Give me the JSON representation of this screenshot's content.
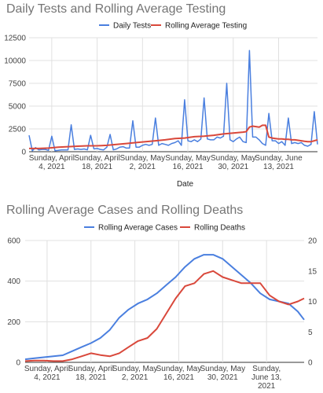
{
  "chart_data": [
    {
      "type": "line",
      "title": "Daily Tests and Rolling Average Testing",
      "xlabel": "Date",
      "ylabel": "",
      "ylim": [
        0,
        12500
      ],
      "y_ticks": [
        "0",
        "2500",
        "5000",
        "7500",
        "10000",
        "12500"
      ],
      "x_ticks": [
        {
          "lines": [
            "Sunday, April",
            "4, 2021"
          ]
        },
        {
          "lines": [
            "Sunday, April",
            "18, 2021"
          ]
        },
        {
          "lines": [
            "Sunday, May",
            "2, 2021"
          ]
        },
        {
          "lines": [
            "Sunday, May",
            "16, 2021"
          ]
        },
        {
          "lines": [
            "Sunday, May",
            "30, 2021"
          ]
        },
        {
          "lines": [
            "Sunday, June",
            "13, 2021"
          ]
        }
      ],
      "x_tick_days": [
        4,
        18,
        32,
        46,
        60,
        74
      ],
      "x_range_days": [
        -3,
        86
      ],
      "legend_position": "top",
      "grid": true,
      "series": [
        {
          "name": "Daily Tests",
          "color": "#4a7fdf",
          "days": [
            -3,
            -2,
            -1,
            0,
            1,
            2,
            3,
            4,
            5,
            6,
            7,
            8,
            9,
            10,
            11,
            12,
            13,
            14,
            15,
            16,
            17,
            18,
            19,
            20,
            21,
            22,
            23,
            24,
            25,
            26,
            27,
            28,
            29,
            30,
            31,
            32,
            33,
            34,
            35,
            36,
            37,
            38,
            39,
            40,
            41,
            42,
            43,
            44,
            45,
            46,
            47,
            48,
            49,
            50,
            51,
            52,
            53,
            54,
            55,
            56,
            57,
            58,
            59,
            60,
            61,
            62,
            63,
            64,
            65,
            66,
            67,
            68,
            69,
            70,
            71,
            72,
            73,
            74,
            75,
            76,
            77,
            78,
            79,
            80,
            81,
            82,
            83,
            84,
            85,
            86
          ],
          "values": [
            1800,
            100,
            450,
            200,
            250,
            250,
            150,
            1700,
            100,
            150,
            200,
            200,
            200,
            2950,
            250,
            300,
            250,
            300,
            200,
            1800,
            300,
            350,
            250,
            200,
            500,
            1900,
            200,
            300,
            500,
            550,
            400,
            400,
            3400,
            500,
            500,
            700,
            800,
            700,
            800,
            3700,
            700,
            900,
            800,
            700,
            900,
            1000,
            1200,
            700,
            5700,
            1200,
            1100,
            1300,
            1100,
            1400,
            5900,
            1400,
            1300,
            1300,
            1600,
            1500,
            1700,
            7500,
            1300,
            1100,
            1400,
            1600,
            1100,
            1000,
            11100,
            1600,
            1600,
            1300,
            900,
            700,
            4200,
            1200,
            1200,
            900,
            1100,
            700,
            3700,
            900,
            1000,
            900,
            1000,
            700,
            600,
            800,
            4400,
            800
          ]
        },
        {
          "name": "Rolling Average Testing",
          "color": "#d9483b",
          "days": [
            -3,
            0,
            3,
            6,
            9,
            12,
            15,
            18,
            21,
            24,
            27,
            30,
            33,
            36,
            39,
            42,
            45,
            48,
            51,
            54,
            57,
            60,
            63,
            64,
            65,
            66,
            67,
            68,
            69,
            70,
            71,
            72,
            73,
            74,
            75,
            76,
            77,
            78,
            79,
            80,
            81,
            82,
            83,
            84,
            85,
            86
          ],
          "values": [
            350,
            350,
            400,
            500,
            550,
            600,
            650,
            650,
            700,
            800,
            900,
            1000,
            1100,
            1200,
            1300,
            1450,
            1500,
            1650,
            1700,
            1800,
            1950,
            2050,
            2150,
            2200,
            2700,
            2800,
            2750,
            2700,
            2900,
            2900,
            1600,
            1500,
            1450,
            1400,
            1400,
            1350,
            1350,
            1300,
            1300,
            1250,
            1200,
            1150,
            1100,
            1100,
            1200,
            1300
          ]
        }
      ]
    },
    {
      "type": "line",
      "title": "Rolling Average Cases and Rolling Deaths",
      "xlabel": "",
      "ylabel": "",
      "ylim": [
        0,
        600
      ],
      "y2lim": [
        0,
        20
      ],
      "y_ticks": [
        "0",
        "200",
        "400",
        "600"
      ],
      "y2_ticks": [
        "0",
        "5",
        "10",
        "15",
        "20"
      ],
      "x_ticks": [
        {
          "lines": [
            "Sunday, April",
            "4, 2021"
          ]
        },
        {
          "lines": [
            "Sunday, April",
            "18, 2021"
          ]
        },
        {
          "lines": [
            "Sunday, May",
            "2, 2021"
          ]
        },
        {
          "lines": [
            "Sunday, May",
            "16, 2021"
          ]
        },
        {
          "lines": [
            "Sunday, May",
            "30, 2021"
          ]
        },
        {
          "lines": [
            "Sunday,",
            "June 13,",
            "2021"
          ]
        }
      ],
      "x_tick_days": [
        4,
        18,
        32,
        46,
        60,
        74
      ],
      "x_range_days": [
        -3,
        86
      ],
      "legend_position": "top",
      "grid": true,
      "series": [
        {
          "name": "Rolling Average Cases",
          "axis": "left",
          "color": "#4a7fdf",
          "days": [
            -3,
            0,
            3,
            6,
            9,
            12,
            15,
            18,
            21,
            24,
            27,
            30,
            33,
            36,
            39,
            42,
            45,
            48,
            51,
            54,
            57,
            60,
            63,
            66,
            69,
            72,
            75,
            78,
            81,
            84,
            86
          ],
          "values": [
            15,
            20,
            25,
            30,
            35,
            55,
            75,
            95,
            120,
            160,
            220,
            260,
            290,
            310,
            340,
            380,
            420,
            470,
            510,
            530,
            530,
            510,
            470,
            430,
            390,
            340,
            310,
            300,
            290,
            250,
            210
          ]
        },
        {
          "name": "Rolling Deaths",
          "axis": "right",
          "color": "#d9483b",
          "days": [
            -3,
            0,
            3,
            6,
            9,
            12,
            15,
            18,
            21,
            24,
            27,
            30,
            33,
            36,
            39,
            42,
            45,
            48,
            51,
            54,
            57,
            60,
            63,
            66,
            69,
            72,
            75,
            78,
            81,
            84,
            86
          ],
          "values": [
            0.2,
            0.3,
            0.3,
            0.2,
            0.2,
            0.5,
            1.0,
            1.5,
            1.2,
            1.0,
            1.5,
            2.5,
            3.5,
            4.0,
            5.5,
            8.0,
            10.5,
            12.5,
            13.0,
            14.5,
            15.0,
            14.0,
            13.5,
            13.0,
            13.0,
            13.0,
            11.0,
            10.0,
            9.5,
            10.0,
            10.5
          ]
        }
      ]
    }
  ]
}
